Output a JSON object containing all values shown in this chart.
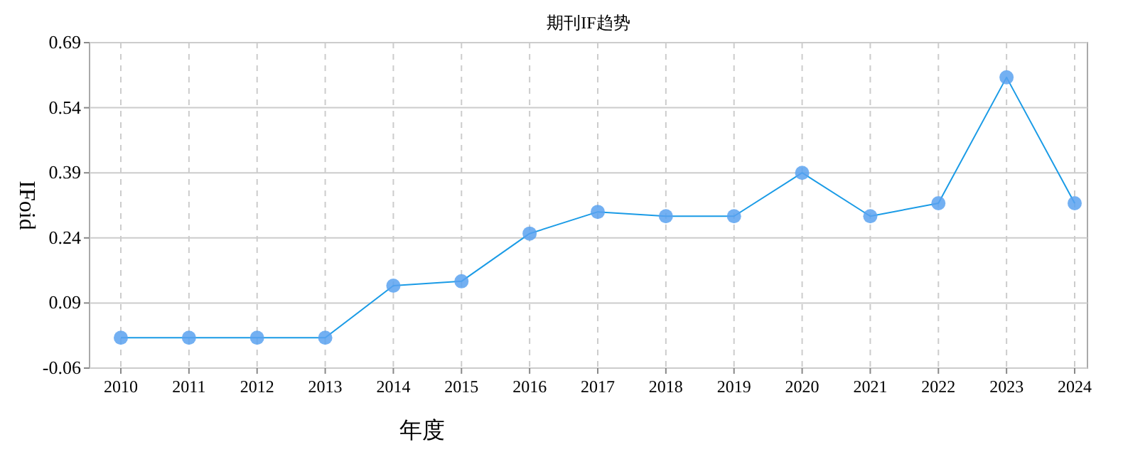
{
  "chart_data": {
    "type": "line",
    "title": "期刊IF趋势",
    "xlabel": "年度",
    "ylabel": "IFoid",
    "categories": [
      "2010",
      "2011",
      "2012",
      "2013",
      "2014",
      "2015",
      "2016",
      "2017",
      "2018",
      "2019",
      "2020",
      "2021",
      "2022",
      "2023",
      "2024"
    ],
    "series": [
      {
        "color": "#1a9be6",
        "values": [
          0.01,
          0.01,
          0.01,
          0.01,
          0.13,
          0.14,
          0.25,
          0.3,
          0.29,
          0.29,
          0.39,
          0.29,
          0.32,
          0.61,
          0.32
        ]
      }
    ],
    "ylim": [
      -0.06,
      0.69
    ],
    "yticks": [
      -0.06,
      0.09,
      0.24,
      0.39,
      0.54,
      0.69
    ],
    "grid": true,
    "marker": "circle",
    "line_style": "solid"
  }
}
